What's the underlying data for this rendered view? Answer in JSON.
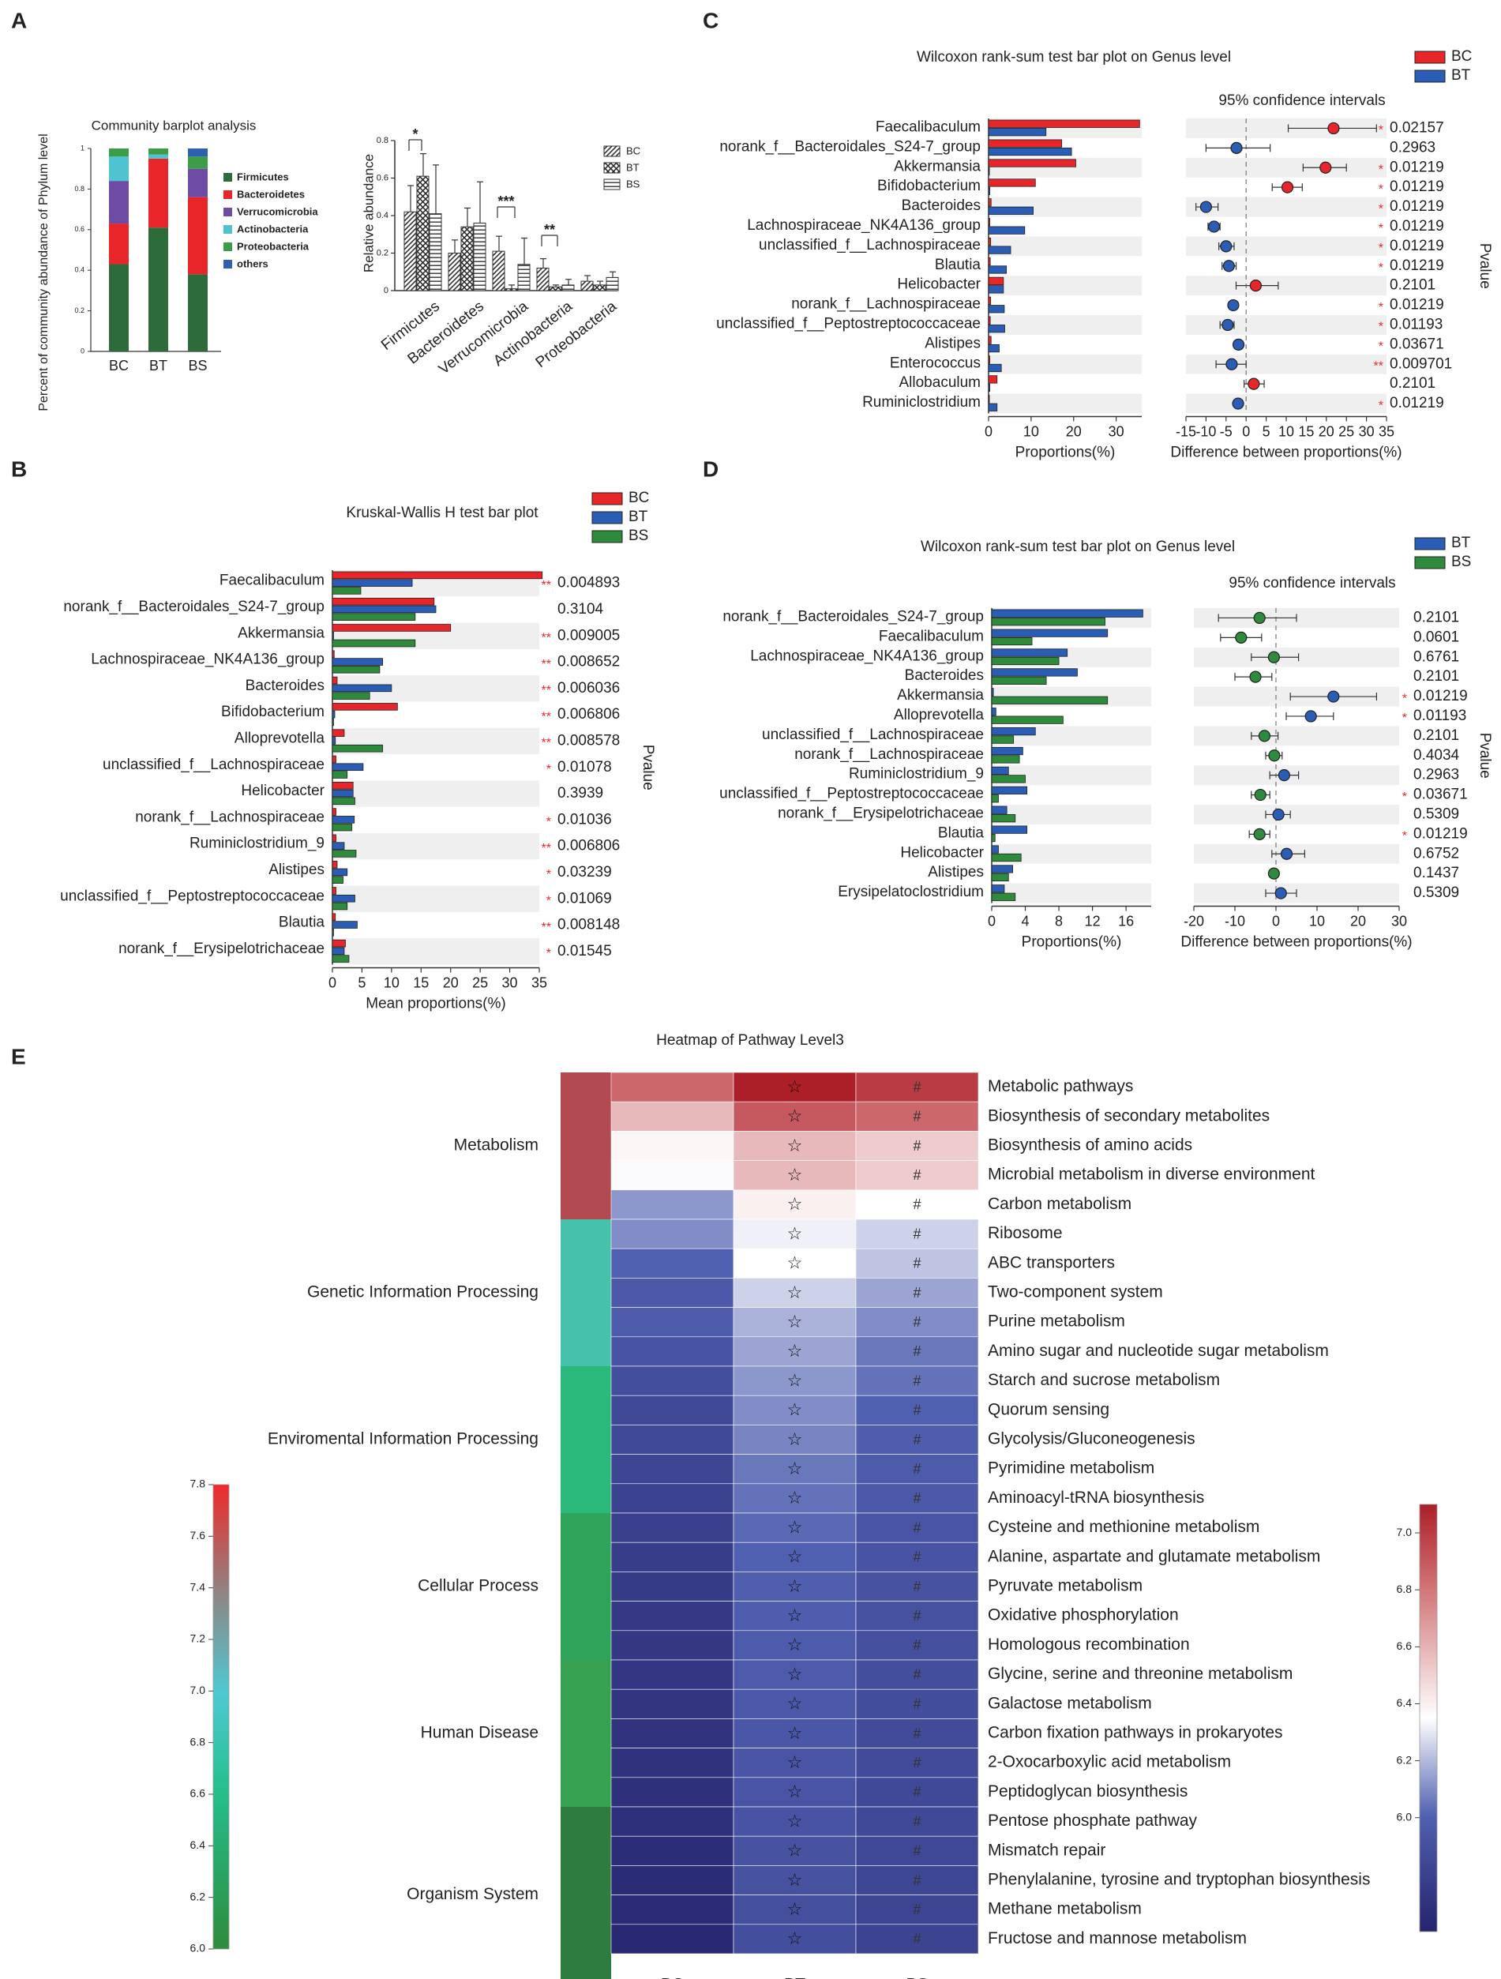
{
  "panel_labels": [
    "A",
    "B",
    "C",
    "D",
    "E"
  ],
  "colors": {
    "BC": "#e8262a",
    "BT": "#2a5db5",
    "BS": "#2e8b3c",
    "Firmicutes": "#2e6b3a",
    "Bacteroidetes": "#e8262a",
    "Verrucomicrobia": "#6e4ca6",
    "Actinobacteria": "#4fc3cf",
    "Proteobacteria": "#3b9c4a",
    "others": "#2f5faf",
    "sig": "#e8262a",
    "rowband": "#efefef"
  },
  "chart_data": [
    {
      "id": "A1",
      "type": "bar",
      "stacked": true,
      "title": "Community barplot analysis",
      "ylabel": "Percent of community abundance of Phylum level",
      "categories": [
        "BC",
        "BT",
        "BS"
      ],
      "yticks": [
        "0",
        "0.2",
        "0.4",
        "0.6",
        "0.8",
        "1"
      ],
      "ylim": [
        0,
        1
      ],
      "series": [
        {
          "name": "Firmicutes",
          "values": [
            0.43,
            0.61,
            0.38
          ]
        },
        {
          "name": "Bacteroidetes",
          "values": [
            0.2,
            0.34,
            0.38
          ]
        },
        {
          "name": "Verrucomicrobia",
          "values": [
            0.21,
            0.0,
            0.14
          ]
        },
        {
          "name": "Actinobacteria",
          "values": [
            0.12,
            0.02,
            0.0
          ]
        },
        {
          "name": "Proteobacteria",
          "values": [
            0.04,
            0.03,
            0.06
          ]
        },
        {
          "name": "others",
          "values": [
            0.0,
            0.0,
            0.04
          ]
        }
      ]
    },
    {
      "id": "A2",
      "type": "bar",
      "ylabel": "Relative abundance",
      "categories": [
        "Firmicutes",
        "Bacteroidetes",
        "Verrucomicrobia",
        "Actinobacteria",
        "Proteobacteria"
      ],
      "yticks": [
        "0",
        "0.2",
        "0.4",
        "0.6",
        "0.8"
      ],
      "ylim": [
        0,
        0.8
      ],
      "series": [
        {
          "name": "BC",
          "values": [
            0.42,
            0.2,
            0.21,
            0.12,
            0.05
          ],
          "err": [
            0.14,
            0.07,
            0.08,
            0.05,
            0.03
          ]
        },
        {
          "name": "BT",
          "values": [
            0.61,
            0.34,
            0.01,
            0.02,
            0.03
          ],
          "err": [
            0.12,
            0.1,
            0.02,
            0.01,
            0.02
          ]
        },
        {
          "name": "BS",
          "values": [
            0.41,
            0.36,
            0.14,
            0.03,
            0.07
          ],
          "err": [
            0.26,
            0.22,
            0.14,
            0.03,
            0.03
          ]
        }
      ],
      "significance": [
        {
          "category": "Firmicutes",
          "label": "*"
        },
        {
          "category": "Verrucomicrobia",
          "label": "***"
        },
        {
          "category": "Actinobacteria",
          "label": "**"
        }
      ]
    },
    {
      "id": "B",
      "type": "bar",
      "orientation": "horizontal",
      "title": "Kruskal-Wallis H test bar plot",
      "xlabel": "Mean proportions(%)",
      "pvalue_label": "Pvalue",
      "xticks": [
        "0",
        "5",
        "10",
        "15",
        "20",
        "25",
        "30",
        "35"
      ],
      "xlim": [
        0,
        35
      ],
      "legend": [
        "BC",
        "BT",
        "BS"
      ],
      "categories": [
        "Faecalibaculum",
        "norank_f__Bacteroidales_S24-7_group",
        "Akkermansia",
        "Lachnospiraceae_NK4A136_group",
        "Bacteroides",
        "Bifidobacterium",
        "Alloprevotella",
        "unclassified_f__Lachnospiraceae",
        "Helicobacter",
        "norank_f__Lachnospiraceae",
        "Ruminiclostridium_9",
        "Alistipes",
        "unclassified_f__Peptostreptococcaceae",
        "Blautia",
        "norank_f__Erysipelotrichaceae"
      ],
      "series": [
        {
          "name": "BC",
          "values": [
            35.5,
            17.2,
            20.0,
            0.3,
            0.8,
            11.0,
            2.0,
            0.6,
            3.5,
            0.6,
            0.6,
            0.8,
            0.6,
            0.5,
            2.2
          ]
        },
        {
          "name": "BT",
          "values": [
            13.5,
            17.5,
            0.2,
            8.5,
            10.0,
            0.4,
            0.5,
            5.2,
            3.5,
            3.7,
            2.0,
            2.5,
            3.8,
            4.2,
            2.0
          ]
        },
        {
          "name": "BS",
          "values": [
            4.8,
            14.0,
            14.0,
            8.0,
            6.3,
            0.2,
            8.5,
            2.5,
            3.8,
            3.3,
            4.0,
            1.8,
            2.5,
            0.2,
            2.8
          ]
        }
      ],
      "pvalues": [
        "0.004893",
        "0.3104",
        "0.009005",
        "0.008652",
        "0.006036",
        "0.006806",
        "0.008578",
        "0.01078",
        "0.3939",
        "0.01036",
        "0.006806",
        "0.03239",
        "0.01069",
        "0.008148",
        "0.01545"
      ],
      "marks": [
        "**",
        "",
        "**",
        "**",
        "**",
        "**",
        "**",
        "*",
        "",
        "*",
        "**",
        "*",
        "*",
        "**",
        "*"
      ]
    },
    {
      "id": "C",
      "type": "bar",
      "orientation": "horizontal",
      "title": "Wilcoxon rank-sum test bar plot on Genus level",
      "ci_title": "95% confidence intervals",
      "xlabel": "Proportions(%)",
      "ci_xlabel": "Difference between proportions(%)",
      "pvalue_label": "Pvalue",
      "xticks": [
        "0",
        "10",
        "20",
        "30"
      ],
      "xlim": [
        0,
        36
      ],
      "ci_xticks": [
        "-15",
        "-10",
        "-5",
        "0",
        "5",
        "10",
        "15",
        "20",
        "25",
        "30",
        "35"
      ],
      "ci_xlim": [
        -15,
        35
      ],
      "legend": [
        "BC",
        "BT"
      ],
      "categories": [
        "Faecalibaculum",
        "norank_f__Bacteroidales_S24-7_group",
        "Akkermansia",
        "Bifidobacterium",
        "Bacteroides",
        "Lachnospiraceae_NK4A136_group",
        "unclassified_f__Lachnospiraceae",
        "Blautia",
        "Helicobacter",
        "norank_f__Lachnospiraceae",
        "unclassified_f__Peptostreptococcaceae",
        "Alistipes",
        "Enterococcus",
        "Allobaculum",
        "Ruminiclostridium"
      ],
      "series": [
        {
          "name": "BC",
          "values": [
            35.5,
            17.2,
            20.5,
            11.0,
            0.6,
            0.3,
            0.5,
            0.4,
            3.5,
            0.5,
            0.4,
            0.6,
            0.3,
            2.0,
            0.2
          ]
        },
        {
          "name": "BT",
          "values": [
            13.5,
            19.5,
            0.2,
            0.3,
            10.5,
            8.5,
            5.2,
            4.2,
            3.5,
            3.7,
            3.8,
            2.5,
            3.0,
            0.3,
            2.0
          ]
        }
      ],
      "ci": [
        {
          "est": 21.8,
          "lo": 10.5,
          "hi": 32.5
        },
        {
          "est": -2.4,
          "lo": -10.0,
          "hi": 6.0
        },
        {
          "est": 19.8,
          "lo": 14.2,
          "hi": 25.0
        },
        {
          "est": 10.3,
          "lo": 6.5,
          "hi": 14.0
        },
        {
          "est": -10.0,
          "lo": -12.5,
          "hi": -7.0
        },
        {
          "est": -8.0,
          "lo": -9.5,
          "hi": -6.5
        },
        {
          "est": -5.0,
          "lo": -6.8,
          "hi": -3.0
        },
        {
          "est": -4.3,
          "lo": -6.0,
          "hi": -2.5
        },
        {
          "est": 2.4,
          "lo": -2.5,
          "hi": 8.0
        },
        {
          "est": -3.2,
          "lo": -4.2,
          "hi": -2.2
        },
        {
          "est": -4.6,
          "lo": -6.5,
          "hi": -3.0
        },
        {
          "est": -1.9,
          "lo": -3.0,
          "hi": -0.9
        },
        {
          "est": -3.6,
          "lo": -7.5,
          "hi": 0.0
        },
        {
          "est": 1.9,
          "lo": -0.5,
          "hi": 4.5
        },
        {
          "est": -2.0,
          "lo": -2.8,
          "hi": -1.2
        }
      ],
      "pvalues": [
        "0.02157",
        "0.2963",
        "0.01219",
        "0.01219",
        "0.01219",
        "0.01219",
        "0.01219",
        "0.01219",
        "0.2101",
        "0.01219",
        "0.01193",
        "0.03671",
        "0.009701",
        "0.2101",
        "0.01219"
      ],
      "marks": [
        "*",
        "",
        "*",
        "*",
        "*",
        "*",
        "*",
        "*",
        "",
        "*",
        "*",
        "*",
        "**",
        "",
        "*"
      ]
    },
    {
      "id": "D",
      "type": "bar",
      "orientation": "horizontal",
      "title": "Wilcoxon rank-sum test bar plot on Genus level",
      "ci_title": "95% confidence intervals",
      "xlabel": "Proportions(%)",
      "ci_xlabel": "Difference between proportions(%)",
      "pvalue_label": "Pvalue",
      "xticks": [
        "0",
        "4",
        "8",
        "12",
        "16"
      ],
      "xlim": [
        0,
        19
      ],
      "ci_xticks": [
        "-20",
        "-10",
        "0",
        "10",
        "20",
        "30"
      ],
      "ci_xlim": [
        -20,
        30
      ],
      "legend": [
        "BT",
        "BS"
      ],
      "categories": [
        "norank_f__Bacteroidales_S24-7_group",
        "Faecalibaculum",
        "Lachnospiraceae_NK4A136_group",
        "Bacteroides",
        "Akkermansia",
        "Alloprevotella",
        "unclassified_f__Lachnospiraceae",
        "norank_f__Lachnospiraceae",
        "Ruminiclostridium_9",
        "unclassified_f__Peptostreptococcaceae",
        "norank_f__Erysipelotrichaceae",
        "Blautia",
        "Helicobacter",
        "Alistipes",
        "Erysipelatoclostridium"
      ],
      "series": [
        {
          "name": "BT",
          "values": [
            18.0,
            13.8,
            9.0,
            10.2,
            0.2,
            0.5,
            5.2,
            3.7,
            2.0,
            4.2,
            1.8,
            4.2,
            0.8,
            2.5,
            1.5
          ]
        },
        {
          "name": "BS",
          "values": [
            13.5,
            4.8,
            8.0,
            6.5,
            13.8,
            8.5,
            2.6,
            3.3,
            4.0,
            0.8,
            2.8,
            0.4,
            3.5,
            2.0,
            2.8
          ]
        }
      ],
      "ci": [
        {
          "est": -4.0,
          "lo": -14.0,
          "hi": 5.0
        },
        {
          "est": -8.5,
          "lo": -13.5,
          "hi": -3.5
        },
        {
          "est": -0.5,
          "lo": -6.0,
          "hi": 5.5
        },
        {
          "est": -5.0,
          "lo": -10.0,
          "hi": -1.0
        },
        {
          "est": 14.0,
          "lo": 3.5,
          "hi": 24.5
        },
        {
          "est": 8.5,
          "lo": 2.5,
          "hi": 14.0
        },
        {
          "est": -2.8,
          "lo": -6.0,
          "hi": 0.5
        },
        {
          "est": -0.4,
          "lo": -2.5,
          "hi": 1.5
        },
        {
          "est": 2.0,
          "lo": -1.5,
          "hi": 5.5
        },
        {
          "est": -3.8,
          "lo": -6.0,
          "hi": -1.5
        },
        {
          "est": 0.6,
          "lo": -2.5,
          "hi": 3.5
        },
        {
          "est": -4.0,
          "lo": -6.5,
          "hi": -1.5
        },
        {
          "est": 2.6,
          "lo": -1.0,
          "hi": 7.0
        },
        {
          "est": -0.5,
          "lo": -1.5,
          "hi": 0.5
        },
        {
          "est": 1.2,
          "lo": -2.5,
          "hi": 5.0
        }
      ],
      "pvalues": [
        "0.2101",
        "0.0601",
        "0.6761",
        "0.2101",
        "0.01219",
        "0.01193",
        "0.2101",
        "0.4034",
        "0.2963",
        "0.03671",
        "0.5309",
        "0.01219",
        "0.6752",
        "0.1437",
        "0.5309"
      ],
      "marks": [
        "",
        "",
        "",
        "",
        "*",
        "*",
        "",
        "",
        "",
        "*",
        "",
        "*",
        "",
        "",
        ""
      ]
    },
    {
      "id": "E",
      "type": "heatmap",
      "title": "Heatmap of Pathway Level3",
      "columns": [
        "BC",
        "BT",
        "BS"
      ],
      "column_marks": [
        "",
        "☆",
        "#"
      ],
      "left_scale": {
        "min": 6.0,
        "max": 7.8,
        "ticks": [
          "6.0",
          "6.2",
          "6.4",
          "6.6",
          "6.8",
          "7.0",
          "7.2",
          "7.4",
          "7.6",
          "7.8"
        ]
      },
      "right_scale": {
        "min": 5.6,
        "max": 7.1,
        "ticks": [
          "6.0",
          "6.2",
          "6.4",
          "6.6",
          "6.8",
          "7.0"
        ]
      },
      "groups": [
        {
          "name": "Metabolism",
          "start": 0,
          "end": 4,
          "color": "#b24a52"
        },
        {
          "name": "Genetic Information Processing",
          "start": 5,
          "end": 9,
          "color": "#45c1ac"
        },
        {
          "name": "Enviromental Information Processing",
          "start": 10,
          "end": 14,
          "color": "#2ab97a"
        },
        {
          "name": "Cellular Process",
          "start": 15,
          "end": 19,
          "color": "#2fa35a"
        },
        {
          "name": "Human Disease",
          "start": 20,
          "end": 24,
          "color": "#36a150"
        },
        {
          "name": "Organism System",
          "start": 25,
          "end": 30,
          "color": "#2e7d3e"
        }
      ],
      "rows": [
        {
          "label": "Metabolic pathways",
          "values": [
            6.85,
            7.1,
            7.0
          ]
        },
        {
          "label": "Biosynthesis of secondary metabolites",
          "values": [
            6.58,
            6.9,
            6.85
          ]
        },
        {
          "label": "Biosynthesis of amino acids",
          "values": [
            6.38,
            6.58,
            6.52
          ]
        },
        {
          "label": "Microbial metabolism in diverse environment",
          "values": [
            6.34,
            6.58,
            6.52
          ]
        },
        {
          "label": "Carbon metabolism",
          "values": [
            6.12,
            6.4,
            6.35
          ]
        },
        {
          "label": "Ribosome",
          "values": [
            6.1,
            6.32,
            6.25
          ]
        },
        {
          "label": "ABC transporters",
          "values": [
            6.0,
            6.35,
            6.22
          ]
        },
        {
          "label": "Two-component system",
          "values": [
            5.95,
            6.25,
            6.15
          ]
        },
        {
          "label": "Purine metabolism",
          "values": [
            5.97,
            6.18,
            6.1
          ]
        },
        {
          "label": "Amino sugar and nucleotide sugar metabolism",
          "values": [
            5.92,
            6.15,
            6.05
          ]
        },
        {
          "label": "Starch and sucrose metabolism",
          "values": [
            5.88,
            6.12,
            6.04
          ]
        },
        {
          "label": "Quorum sensing",
          "values": [
            5.85,
            6.1,
            6.0
          ]
        },
        {
          "label": "Glycolysis/Gluconeogenesis",
          "values": [
            5.84,
            6.08,
            5.98
          ]
        },
        {
          "label": "Pyrimidine metabolism",
          "values": [
            5.82,
            6.05,
            5.97
          ]
        },
        {
          "label": "Aminoacyl-tRNA biosynthesis",
          "values": [
            5.8,
            6.04,
            5.95
          ]
        },
        {
          "label": "Cysteine and methionine metabolism",
          "values": [
            5.78,
            6.02,
            5.93
          ]
        },
        {
          "label": "Alanine, aspartate and glutamate metabolism",
          "values": [
            5.77,
            6.0,
            5.92
          ]
        },
        {
          "label": "Pyruvate metabolism",
          "values": [
            5.75,
            5.99,
            5.91
          ]
        },
        {
          "label": "Oxidative phosphorylation",
          "values": [
            5.74,
            5.98,
            5.9
          ]
        },
        {
          "label": "Homologous recombination",
          "values": [
            5.73,
            5.97,
            5.89
          ]
        },
        {
          "label": "Glycine, serine and threonine metabolism",
          "values": [
            5.72,
            5.96,
            5.88
          ]
        },
        {
          "label": "Galactose metabolism",
          "values": [
            5.71,
            5.95,
            5.87
          ]
        },
        {
          "label": "Carbon fixation pathways in prokaryotes",
          "values": [
            5.7,
            5.94,
            5.86
          ]
        },
        {
          "label": "2-Oxocarboxylic acid metabolism",
          "values": [
            5.69,
            5.93,
            5.86
          ]
        },
        {
          "label": "Peptidoglycan biosynthesis",
          "values": [
            5.68,
            5.93,
            5.85
          ]
        },
        {
          "label": "Pentose phosphate pathway",
          "values": [
            5.67,
            5.92,
            5.85
          ]
        },
        {
          "label": "Mismatch repair",
          "values": [
            5.66,
            5.91,
            5.84
          ]
        },
        {
          "label": "Phenylalanine, tyrosine and tryptophan biosynthesis",
          "values": [
            5.65,
            5.9,
            5.83
          ]
        },
        {
          "label": "Methane metabolism",
          "values": [
            5.64,
            5.89,
            5.82
          ]
        },
        {
          "label": "Fructose and mannose metabolism",
          "values": [
            5.63,
            5.88,
            5.81
          ]
        },
        {
          "label": "",
          "values": []
        }
      ]
    }
  ]
}
